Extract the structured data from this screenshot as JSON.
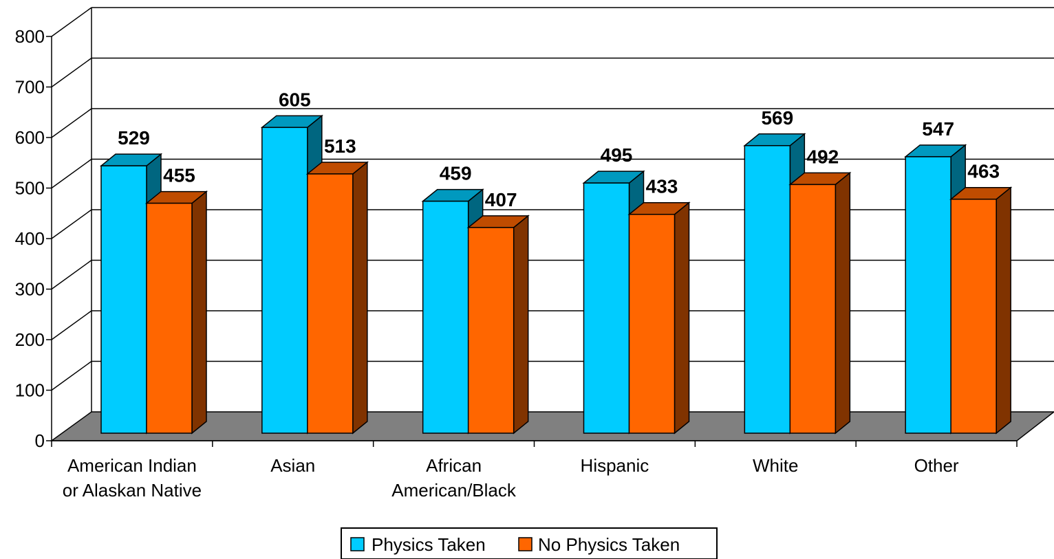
{
  "chart_data": {
    "type": "bar",
    "title": "",
    "xlabel": "",
    "ylabel": "",
    "ylim": [
      0,
      800
    ],
    "yticks": [
      0,
      100,
      200,
      300,
      400,
      500,
      600,
      700,
      800
    ],
    "grid": true,
    "three_d": true,
    "legend_position": "bottom",
    "categories": [
      [
        "American Indian",
        "or Alaskan Native"
      ],
      [
        "Asian"
      ],
      [
        "African",
        "American/Black"
      ],
      [
        "Hispanic"
      ],
      [
        "White"
      ],
      [
        "Other"
      ]
    ],
    "series": [
      {
        "name": "Physics Taken",
        "values": [
          529,
          605,
          459,
          495,
          569,
          547
        ],
        "color": "#00CCFF",
        "side_color": "#006680",
        "top_color": "#0099BF"
      },
      {
        "name": "No Physics Taken",
        "values": [
          455,
          513,
          407,
          433,
          492,
          463
        ],
        "color": "#FF6600",
        "side_color": "#803300",
        "top_color": "#BF4C00"
      }
    ],
    "floor_color": "#808080"
  }
}
